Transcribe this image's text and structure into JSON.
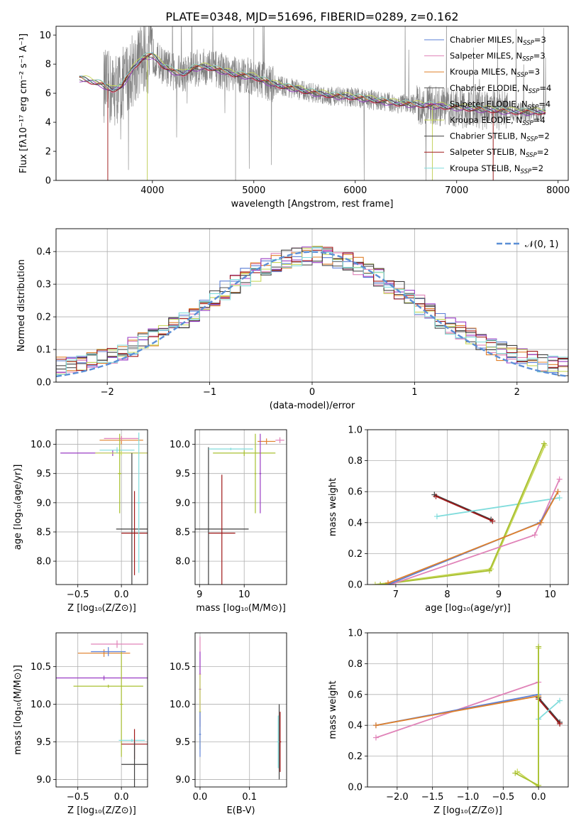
{
  "chart_data": [
    {
      "id": "spectrum",
      "type": "line",
      "title": "PLATE=0348, MJD=51696, FIBERID=0289, z=0.162",
      "xlabel": "wavelength [Angstrom, rest frame]",
      "ylabel": "Flux [fλ10⁻¹⁷ erg cm⁻² s⁻¹ A⁻¹]",
      "xlim": [
        3050,
        8100
      ],
      "ylim": [
        0,
        10.6
      ],
      "xticks": [
        4000,
        5000,
        6000,
        7000,
        8000
      ],
      "yticks": [
        0,
        2,
        4,
        6,
        8,
        10
      ],
      "legend_position": "top-right",
      "grid": false,
      "data_color": "#808080",
      "legend": [
        {
          "name": "Chabrier MILES, N",
          "sub": "SSP",
          "suffix": "=3",
          "color": "#5b7fd6"
        },
        {
          "name": "Salpeter MILES, N",
          "sub": "SSP",
          "suffix": "=3",
          "color": "#e083b8"
        },
        {
          "name": "Kroupa MILES, N",
          "sub": "SSP",
          "suffix": "=3",
          "color": "#e0802a"
        },
        {
          "name": "Chabrier ELODIE, N",
          "sub": "SSP",
          "suffix": "=4",
          "color": "#505050"
        },
        {
          "name": "Salpeter ELODIE, N",
          "sub": "SSP",
          "suffix": "=4",
          "color": "#9a3cc4"
        },
        {
          "name": "Kroupa ELODIE, N",
          "sub": "SSP",
          "suffix": "=4",
          "color": "#c8d85a"
        },
        {
          "name": "Chabrier STELIB, N",
          "sub": "SSP",
          "suffix": "=2",
          "color": "#404040"
        },
        {
          "name": "Salpeter STELIB, N",
          "sub": "SSP",
          "suffix": "=2",
          "color": "#a01818"
        },
        {
          "name": "Kroupa STELIB, N",
          "sub": "SSP",
          "suffix": "=2",
          "color": "#80dcdc"
        }
      ],
      "model_continuum": {
        "x": [
          3300,
          3400,
          3500,
          3600,
          3700,
          3800,
          3900,
          4000,
          4100,
          4200,
          4300,
          4400,
          4500,
          4600,
          4800,
          5000,
          5200,
          5400,
          5600,
          5800,
          6000,
          6200,
          6400,
          6600,
          6800,
          7000,
          7200,
          7400,
          7600,
          7800
        ],
        "y": [
          7.0,
          6.8,
          6.6,
          6.2,
          6.5,
          7.6,
          8.4,
          8.6,
          7.9,
          7.5,
          7.3,
          7.7,
          7.8,
          7.7,
          7.3,
          7.1,
          6.6,
          6.3,
          6.0,
          5.8,
          5.7,
          5.5,
          5.3,
          5.2,
          5.1,
          5.0,
          4.9,
          4.8,
          4.7,
          4.7
        ]
      }
    },
    {
      "id": "residuals",
      "type": "histogram",
      "xlabel": "(data-model)/error",
      "ylabel": "Normed distribution",
      "xlim": [
        -2.5,
        2.5
      ],
      "ylim": [
        0,
        0.47
      ],
      "xticks": [
        -2,
        -1,
        0,
        1,
        2
      ],
      "yticks": [
        0.0,
        0.1,
        0.2,
        0.3,
        0.4
      ],
      "grid": true,
      "legend_position": "top-right",
      "normal_label": "𝒩(0, 1)",
      "normal_color": "#5b8fd6",
      "bin_width": 0.1
    },
    {
      "id": "age-vs-Z",
      "type": "scatter",
      "xlabel": "Z [log₁₀(Z/Z⊙)]",
      "ylabel": "age  [log₁₀(age/yr)]",
      "xlim": [
        -0.75,
        0.3
      ],
      "ylim": [
        7.6,
        10.25
      ],
      "xticks": [
        -0.5,
        0.0
      ],
      "yticks": [
        8.0,
        8.5,
        9.0,
        9.5,
        10.0
      ],
      "grid": true
    },
    {
      "id": "age-vs-mass",
      "type": "scatter",
      "xlabel": "mass [log₁₀(M/M⊙)]",
      "xlim": [
        8.9,
        10.95
      ],
      "ylim": [
        7.6,
        10.25
      ],
      "xticks": [
        9,
        10
      ],
      "yticks": [
        8.0,
        8.5,
        9.0,
        9.5,
        10.0
      ],
      "grid": true
    },
    {
      "id": "weight-vs-age",
      "type": "line",
      "xlabel": "age  [log₁₀(age/yr)]",
      "ylabel": "mass weight",
      "xlim": [
        6.45,
        10.35
      ],
      "ylim": [
        0,
        1.0
      ],
      "xticks": [
        7,
        8,
        9,
        10
      ],
      "yticks": [
        0.0,
        0.2,
        0.4,
        0.6,
        0.8,
        1.0
      ],
      "grid": true,
      "series": [
        {
          "color": "#404040",
          "x": [
            7.75,
            8.85
          ],
          "y": [
            0.58,
            0.42
          ]
        },
        {
          "color": "#a01818",
          "x": [
            7.78,
            8.88
          ],
          "y": [
            0.57,
            0.41
          ]
        },
        {
          "color": "#80dcdc",
          "x": [
            7.8,
            10.18
          ],
          "y": [
            0.44,
            0.56
          ]
        },
        {
          "color": "#c8d85a",
          "x": [
            6.6,
            8.85,
            9.9
          ],
          "y": [
            0.0,
            0.1,
            0.9
          ]
        },
        {
          "color": "#a8c030",
          "x": [
            6.7,
            8.82,
            9.88
          ],
          "y": [
            0.0,
            0.09,
            0.91
          ]
        },
        {
          "color": "#e083b8",
          "x": [
            6.9,
            9.7,
            10.18
          ],
          "y": [
            0.0,
            0.32,
            0.68
          ]
        },
        {
          "color": "#5b7fd6",
          "x": [
            6.85,
            9.8,
            10.15
          ],
          "y": [
            0.0,
            0.4,
            0.6
          ]
        },
        {
          "color": "#e0802a",
          "x": [
            6.85,
            9.82,
            10.15
          ],
          "y": [
            0.01,
            0.4,
            0.6
          ]
        }
      ]
    },
    {
      "id": "mass-vs-Z",
      "type": "scatter",
      "xlabel": "Z [log₁₀(Z/Z⊙)]",
      "ylabel": "mass [log₁₀(M/M⊙)]",
      "xlim": [
        -0.75,
        0.3
      ],
      "ylim": [
        8.9,
        10.95
      ],
      "xticks": [
        -0.5,
        0.0
      ],
      "yticks": [
        9.0,
        9.5,
        10.0,
        10.5
      ],
      "grid": true
    },
    {
      "id": "mass-vs-EBV",
      "type": "scatter",
      "xlabel": "E(B-V)",
      "xlim": [
        -0.01,
        0.175
      ],
      "ylim": [
        8.9,
        10.95
      ],
      "xticks": [
        0.0,
        0.1
      ],
      "yticks": [
        9.0,
        9.5,
        10.0,
        10.5
      ],
      "grid": true
    },
    {
      "id": "weight-vs-Z",
      "type": "line",
      "xlabel": "Z [log₁₀(Z/Z⊙)]",
      "ylabel": "mass weight",
      "xlim": [
        -2.42,
        0.42
      ],
      "ylim": [
        0,
        1.0
      ],
      "xticks": [
        -2.0,
        -1.5,
        -1.0,
        -0.5,
        0.0
      ],
      "yticks": [
        0.0,
        0.2,
        0.4,
        0.6,
        0.8,
        1.0
      ],
      "grid": true,
      "series": [
        {
          "color": "#404040",
          "x": [
            0.0,
            0.3
          ],
          "y": [
            0.58,
            0.42
          ]
        },
        {
          "color": "#a01818",
          "x": [
            0.0,
            0.3
          ],
          "y": [
            0.57,
            0.41
          ]
        },
        {
          "color": "#80dcdc",
          "x": [
            0.0,
            0.3
          ],
          "y": [
            0.44,
            0.56
          ]
        },
        {
          "color": "#e083b8",
          "x": [
            -2.3,
            0.0
          ],
          "y": [
            0.32,
            0.68
          ]
        },
        {
          "color": "#5b7fd6",
          "x": [
            -2.3,
            0.0
          ],
          "y": [
            0.4,
            0.6
          ]
        },
        {
          "color": "#e0802a",
          "x": [
            -2.3,
            0.0
          ],
          "y": [
            0.4,
            0.59
          ]
        },
        {
          "color": "#c8d85a",
          "x": [
            -0.3,
            0.0,
            0.0
          ],
          "y": [
            0.1,
            0.0,
            0.9
          ]
        },
        {
          "color": "#a8c030",
          "x": [
            -0.33,
            0.0,
            0.0
          ],
          "y": [
            0.09,
            0.01,
            0.91
          ]
        }
      ]
    }
  ]
}
